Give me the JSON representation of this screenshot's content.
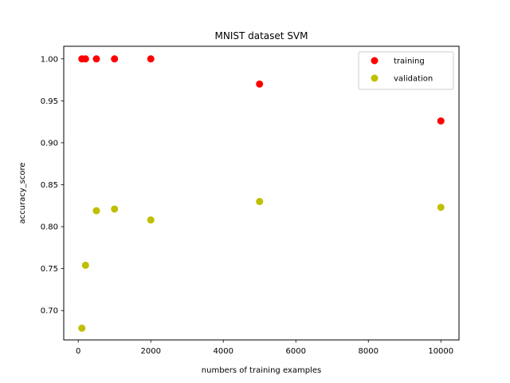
{
  "chart_data": {
    "type": "scatter",
    "title": "MNIST dataset SVM",
    "xlabel": "numbers of training examples",
    "ylabel": "accuracy_score",
    "xlim": [
      -400,
      10500
    ],
    "ylim": [
      0.665,
      1.015
    ],
    "xticks": [
      0,
      2000,
      4000,
      6000,
      8000,
      10000
    ],
    "xtick_labels": [
      "0",
      "2000",
      "4000",
      "6000",
      "8000",
      "10000"
    ],
    "yticks": [
      0.7,
      0.75,
      0.8,
      0.85,
      0.9,
      0.95,
      1.0
    ],
    "ytick_labels": [
      "0.70",
      "0.75",
      "0.80",
      "0.85",
      "0.90",
      "0.95",
      "1.00"
    ],
    "grid": false,
    "legend_position": "top-right",
    "series": [
      {
        "name": "training",
        "color": "#ff0000",
        "x": [
          100,
          200,
          500,
          1000,
          2000,
          5000,
          10000
        ],
        "y": [
          1.0,
          1.0,
          1.0,
          1.0,
          1.0,
          0.97,
          0.926
        ]
      },
      {
        "name": "validation",
        "color": "#bfbf00",
        "x": [
          100,
          200,
          500,
          1000,
          2000,
          5000,
          10000
        ],
        "y": [
          0.679,
          0.754,
          0.819,
          0.821,
          0.808,
          0.83,
          0.823
        ]
      }
    ]
  }
}
